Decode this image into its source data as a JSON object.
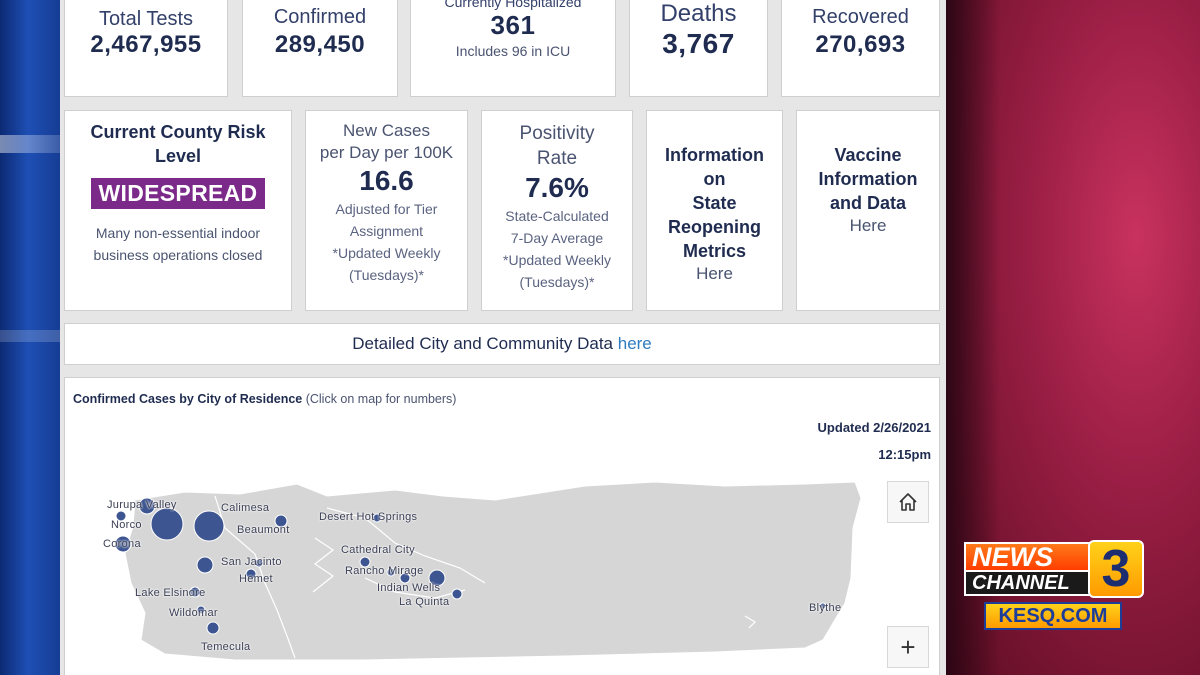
{
  "stats": [
    {
      "label": "Total Tests",
      "value": "2,467,955"
    },
    {
      "label": "Confirmed",
      "value": "289,450"
    },
    {
      "label": "Currently Hospitalized",
      "value": "361",
      "note": "Includes 96 in ICU"
    },
    {
      "label": "Deaths",
      "value": "3,767"
    },
    {
      "label": "Recovered",
      "value": "270,693"
    }
  ],
  "risk": {
    "title": "Current County Risk Level",
    "badge": "WIDESPREAD",
    "badge_color": "#7b2a8a",
    "description": "Many non-essential indoor business operations closed"
  },
  "new_cases": {
    "title_line1": "New Cases",
    "title_line2": "per Day per 100K",
    "value": "16.6",
    "line1": "Adjusted for Tier",
    "line2": "Assignment",
    "line3": "*Updated Weekly",
    "line4": "(Tuesdays)*"
  },
  "positivity": {
    "title_line1": "Positivity",
    "title_line2": "Rate",
    "value": "7.6%",
    "line1": "State-Calculated",
    "line2": "7-Day Average",
    "line3": "*Updated Weekly",
    "line4": "(Tuesdays)*"
  },
  "reopening": {
    "line1": "Information",
    "line2": "on",
    "line3": "State",
    "line4": "Reopening",
    "line5": "Metrics",
    "link": "Here"
  },
  "vaccine": {
    "line1": "Vaccine",
    "line2": "Information",
    "line3": "and Data",
    "link": "Here"
  },
  "city_data": {
    "text": "Detailed City and Community Data",
    "link": "here"
  },
  "map": {
    "title_bold": "Confirmed Cases by City of Residence",
    "title_note": "(Click on map for numbers)",
    "updated_date": "Updated 2/26/2021",
    "updated_time": "12:15pm",
    "zoom_in": "+",
    "home_icon": "home-icon",
    "cities": {
      "jurupa_valley": "Jurupa Valley",
      "norco": "Norco",
      "corona": "Corona",
      "calimesa": "Calimesa",
      "beaumont": "Beaumont",
      "desert_hot_springs": "Desert Hot Springs",
      "cathedral_city": "Cathedral City",
      "rancho_mirage": "Rancho Mirage",
      "indian_wells": "Indian Wells",
      "la_quinta": "La Quinta",
      "san_jacinto": "San Jacinto",
      "hemet": "Hemet",
      "lake_elsinore": "Lake Elsinore",
      "wildomar": "Wildomar",
      "temecula": "Temecula",
      "blythe": "Blythe"
    },
    "region_color": "#d6d6d6",
    "bubble_color": "#3d5590"
  },
  "logo": {
    "news": "NEWS",
    "channel": "CHANNEL",
    "number": "3",
    "url": "KESQ.COM"
  }
}
